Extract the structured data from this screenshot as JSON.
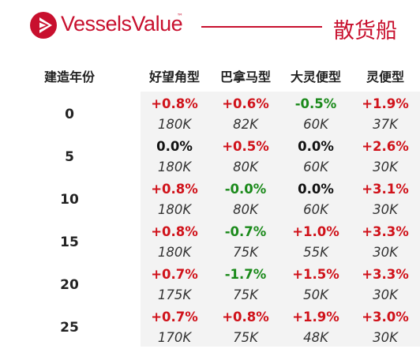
{
  "brand": {
    "name": "VesselsValue",
    "tm": "™",
    "color": "#c8102e",
    "logo_icon": "triangle-in-circle-icon"
  },
  "title": "散货船",
  "table": {
    "row_header": "建造年份",
    "columns": [
      "好望角型",
      "巴拿马型",
      "大灵便型",
      "灵便型"
    ],
    "rows": [
      {
        "age": "0",
        "cells": [
          {
            "pct": "+0.8%",
            "val": "180K",
            "trend": "pos"
          },
          {
            "pct": "+0.6%",
            "val": "82K",
            "trend": "pos"
          },
          {
            "pct": "-0.5%",
            "val": "60K",
            "trend": "neg"
          },
          {
            "pct": "+1.9%",
            "val": "37K",
            "trend": "pos"
          }
        ]
      },
      {
        "age": "5",
        "cells": [
          {
            "pct": "0.0%",
            "val": "180K",
            "trend": "zero"
          },
          {
            "pct": "+0.5%",
            "val": "80K",
            "trend": "pos"
          },
          {
            "pct": "0.0%",
            "val": "60K",
            "trend": "zero"
          },
          {
            "pct": "+2.6%",
            "val": "30K",
            "trend": "pos"
          }
        ]
      },
      {
        "age": "10",
        "cells": [
          {
            "pct": "+0.8%",
            "val": "180K",
            "trend": "pos"
          },
          {
            "pct": "-0.0%",
            "val": "80K",
            "trend": "neg"
          },
          {
            "pct": "0.0%",
            "val": "60K",
            "trend": "zero"
          },
          {
            "pct": "+3.1%",
            "val": "30K",
            "trend": "pos"
          }
        ]
      },
      {
        "age": "15",
        "cells": [
          {
            "pct": "+0.8%",
            "val": "180K",
            "trend": "pos"
          },
          {
            "pct": "-0.7%",
            "val": "75K",
            "trend": "neg"
          },
          {
            "pct": "+1.0%",
            "val": "55K",
            "trend": "pos"
          },
          {
            "pct": "+3.3%",
            "val": "30K",
            "trend": "pos"
          }
        ]
      },
      {
        "age": "20",
        "cells": [
          {
            "pct": "+0.7%",
            "val": "175K",
            "trend": "pos"
          },
          {
            "pct": "-1.7%",
            "val": "75K",
            "trend": "neg"
          },
          {
            "pct": "+1.5%",
            "val": "50K",
            "trend": "pos"
          },
          {
            "pct": "+3.3%",
            "val": "30K",
            "trend": "pos"
          }
        ]
      },
      {
        "age": "25",
        "cells": [
          {
            "pct": "+0.7%",
            "val": "170K",
            "trend": "pos"
          },
          {
            "pct": "+0.8%",
            "val": "75K",
            "trend": "pos"
          },
          {
            "pct": "+1.9%",
            "val": "48K",
            "trend": "pos"
          },
          {
            "pct": "+3.0%",
            "val": "30K",
            "trend": "pos"
          }
        ]
      }
    ]
  },
  "colors": {
    "positive": "#d0121a",
    "negative": "#1b8a1b",
    "neutral": "#111111",
    "shade": "#f3f3f3"
  }
}
